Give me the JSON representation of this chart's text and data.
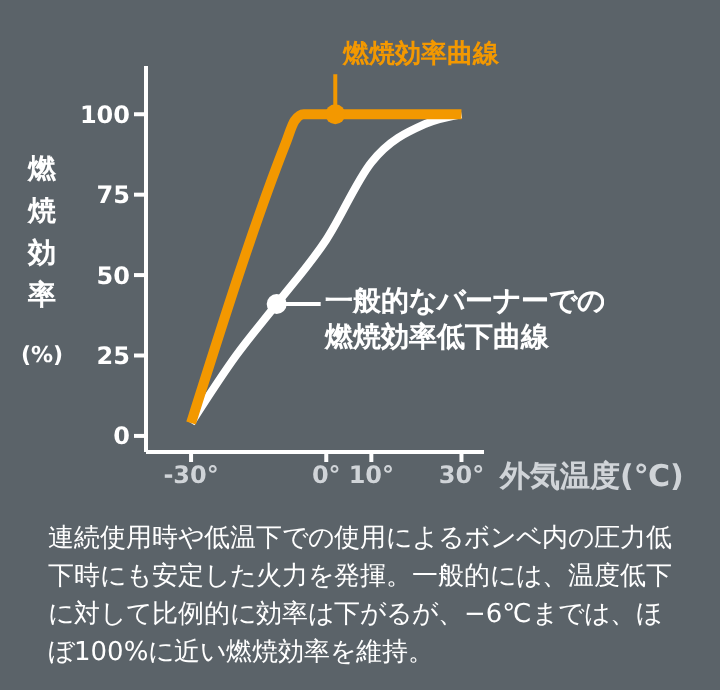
{
  "chart_data": {
    "type": "line",
    "xlabel": "外気温度(℃)",
    "ylabel": "燃焼効率(%)",
    "xlim": [
      -40,
      35
    ],
    "xticks": [
      {
        "value": -30,
        "label": "-30°"
      },
      {
        "value": 0,
        "label": "0°"
      },
      {
        "value": 10,
        "label": "10°"
      },
      {
        "value": 30,
        "label": "30°"
      }
    ],
    "ylim": [
      -5,
      115
    ],
    "yticks": [
      0,
      25,
      50,
      75,
      100
    ],
    "grid": false,
    "legend": false,
    "marker": "none",
    "line_style": "solid",
    "series": [
      {
        "color": "#ffffff",
        "x": [
          -30,
          -20,
          -11,
          0,
          10,
          22,
          30
        ],
        "values": [
          4,
          25,
          41,
          61,
          85,
          97,
          100
        ]
      },
      {
        "color": "#f39800",
        "x": [
          -30,
          -9,
          -7,
          -5,
          30
        ],
        "values": [
          4,
          91,
          98,
          100,
          100
        ]
      }
    ],
    "annotations": [
      {
        "text": "燃焼効率曲線",
        "x": 2,
        "y": 100
      },
      {
        "text": "一般的なバーナーでの燃焼効率低下曲線",
        "x": -11,
        "y": 41
      },
      "連続使用時や低温下での使用によるボンベ内の圧力低下時にも安定した火力を発揮。一般的には、温度低下に対して比例的に効率は下がるが、−6℃までは、ほぼ100%に近い燃焼効率を維持。"
    ]
  }
}
